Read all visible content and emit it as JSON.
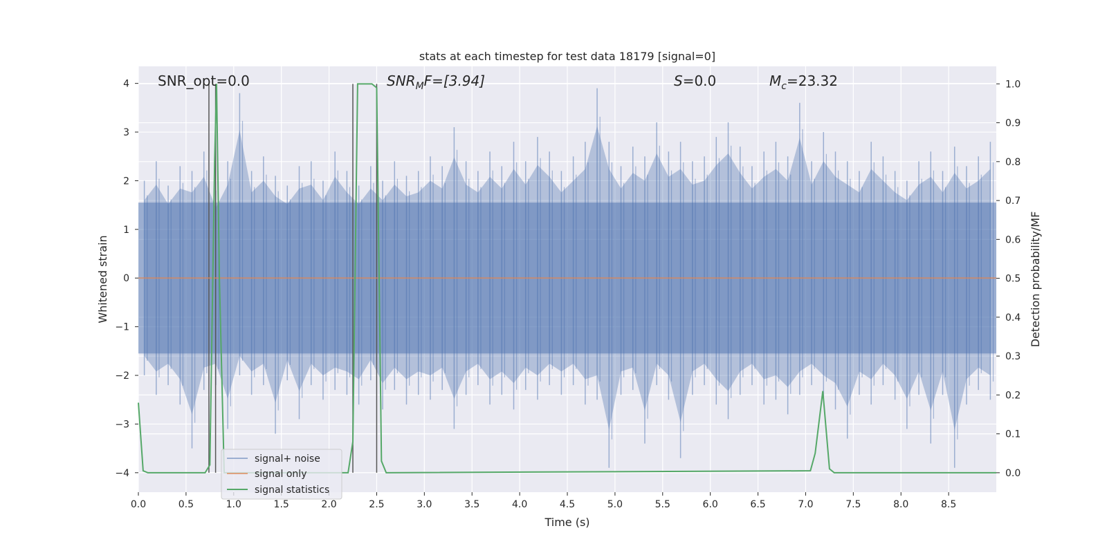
{
  "chart_data": {
    "type": "line",
    "title": "stats at each timestep for test data 18179 [signal=0]",
    "xlabel": "Time (s)",
    "ylabel": "Whitened strain",
    "ylabel_right": "Detection probability/MF",
    "xlim": [
      0.0,
      9.0
    ],
    "ylim": [
      -4.4,
      4.35
    ],
    "ylim_right": [
      -0.05,
      1.045
    ],
    "xticks": [
      0.0,
      0.5,
      1.0,
      1.5,
      2.0,
      2.5,
      3.0,
      3.5,
      4.0,
      4.5,
      5.0,
      5.5,
      6.0,
      6.5,
      7.0,
      7.5,
      8.0,
      8.5
    ],
    "xtick_labels": [
      "0.0",
      "0.5",
      "1.0",
      "1.5",
      "2.0",
      "2.5",
      "3.0",
      "3.5",
      "4.0",
      "4.5",
      "5.0",
      "5.5",
      "6.0",
      "6.5",
      "7.0",
      "7.5",
      "8.0",
      "8.5"
    ],
    "yticks": [
      4,
      3,
      2,
      1,
      0,
      -1,
      -2,
      -3,
      -4
    ],
    "ytick_labels": [
      "4",
      "3",
      "2",
      "1",
      "0",
      "−1",
      "−2",
      "−3",
      "−4"
    ],
    "yticks_right": [
      1.0,
      0.9,
      0.8,
      0.7,
      0.6,
      0.5,
      0.4,
      0.3,
      0.2,
      0.1,
      0.0
    ],
    "ytick_labels_right": [
      "1.0",
      "0.9",
      "0.8",
      "0.7",
      "0.6",
      "0.5",
      "0.4",
      "0.3",
      "0.2",
      "0.1",
      "0.0"
    ],
    "grid": true,
    "legend": {
      "placement": "lower-left",
      "entries": [
        "signal+ noise",
        "signal only",
        "signal statistics"
      ]
    },
    "annotations": {
      "snr_opt": "SNR_opt=0.0",
      "snr_mf_base": "SNR",
      "snr_mf_sub": "M",
      "snr_mf_rest": "F=[3.94]",
      "s_base": "S",
      "s_rest": "=0.0",
      "mc_base": "M",
      "mc_sub": "c",
      "mc_rest": "=23.32"
    },
    "series": [
      {
        "name": "signal+ noise",
        "color": "#4c72b0",
        "description_only": "noise",
        "envelope_upper": [
          2.0,
          2.4,
          1.9,
          2.3,
          2.2,
          2.6,
          1.8,
          2.4,
          3.8,
          2.2,
          2.5,
          2.1,
          1.9,
          2.3,
          2.4,
          2.0,
          2.6,
          2.2,
          1.9,
          2.3,
          2.0,
          2.4,
          2.1,
          2.2,
          2.5,
          2.3,
          3.1,
          2.4,
          2.2,
          2.6,
          2.3,
          2.8,
          2.4,
          2.9,
          2.6,
          2.2,
          2.5,
          2.8,
          3.9,
          2.8,
          2.3,
          2.7,
          2.5,
          3.2,
          2.6,
          2.8,
          2.4,
          2.5,
          2.9,
          3.2,
          2.7,
          2.3,
          2.6,
          2.8,
          2.5,
          3.6,
          2.4,
          3.0,
          2.6,
          2.4,
          2.2,
          2.8,
          2.5,
          2.2,
          2.0,
          2.4,
          2.6,
          2.2,
          2.7,
          2.3,
          2.5,
          2.8
        ],
        "envelope_lower": [
          -2.0,
          -2.4,
          -2.2,
          -2.6,
          -3.5,
          -2.3,
          -2.2,
          -3.1,
          -2.0,
          -2.4,
          -2.2,
          -3.2,
          -2.1,
          -2.9,
          -2.2,
          -2.5,
          -2.3,
          -2.4,
          -2.6,
          -2.1,
          -2.7,
          -2.3,
          -2.6,
          -2.4,
          -2.5,
          -2.3,
          -3.1,
          -2.4,
          -2.2,
          -2.6,
          -2.4,
          -2.7,
          -2.3,
          -2.5,
          -2.2,
          -2.4,
          -2.2,
          -2.6,
          -2.5,
          -3.9,
          -2.4,
          -2.3,
          -3.4,
          -2.2,
          -2.5,
          -3.7,
          -2.4,
          -2.2,
          -2.6,
          -2.9,
          -2.4,
          -2.2,
          -2.6,
          -2.5,
          -2.8,
          -2.4,
          -2.2,
          -2.5,
          -2.7,
          -3.3,
          -2.4,
          -2.6,
          -2.2,
          -2.5,
          -3.1,
          -2.4,
          -3.4,
          -2.4,
          -3.9,
          -2.6,
          -2.3,
          -2.5
        ]
      },
      {
        "name": "signal only",
        "color": "#dd8452",
        "x": [
          0.0,
          9.0
        ],
        "y": [
          0.0,
          0.0
        ]
      },
      {
        "name": "signal statistics",
        "color": "#55a868",
        "axis": "right",
        "x": [
          0.0,
          0.05,
          0.1,
          0.7,
          0.75,
          0.8,
          0.82,
          0.85,
          0.9,
          2.2,
          2.25,
          2.3,
          2.35,
          2.45,
          2.5,
          2.55,
          2.6,
          7.05,
          7.1,
          7.18,
          7.25,
          7.3,
          9.0
        ],
        "y": [
          0.18,
          0.005,
          0.0,
          0.0,
          0.02,
          0.8,
          1.0,
          0.5,
          0.0,
          0.0,
          0.08,
          1.0,
          1.0,
          1.0,
          0.99,
          0.03,
          0.0,
          0.005,
          0.05,
          0.21,
          0.01,
          0.0,
          0.0
        ]
      }
    ],
    "vlines": [
      0.74,
      0.81,
      2.25,
      2.5
    ],
    "vline_color": "#555555"
  }
}
